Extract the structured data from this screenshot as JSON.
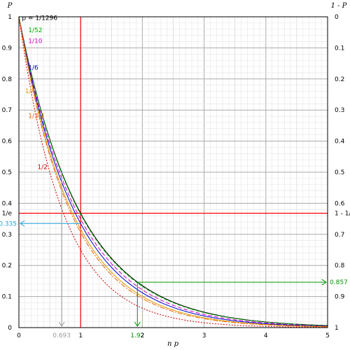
{
  "chart_data": {
    "type": "line",
    "xlabel": "n p",
    "ylabel_left": "P",
    "ylabel_right": "1 - P",
    "xlim": [
      0,
      5
    ],
    "ylim": [
      0,
      1
    ],
    "x_ticks": [
      "0",
      "1",
      "2",
      "3",
      "4",
      "5"
    ],
    "y_ticks_left": [
      "0",
      "0.1",
      "0.2",
      "0.3",
      "0.4",
      "0.5",
      "0.6",
      "0.7",
      "0.8",
      "0.9",
      "1"
    ],
    "y_ticks_right": [
      "1",
      "0.9",
      "0.8",
      "0.7",
      "0.6",
      "0.5",
      "0.4",
      "0.3",
      "0.2",
      "0.1",
      "0"
    ],
    "grid": true,
    "series": [
      {
        "name": "p = 1/1296",
        "p": 0.000772,
        "color": "#000000",
        "dash": "none"
      },
      {
        "name": "1/52",
        "p": 0.01923,
        "color": "#00aa00",
        "dash": "5,2"
      },
      {
        "name": "1/10",
        "p": 0.1,
        "color": "#cc00cc",
        "dash": "6,3"
      },
      {
        "name": "1/6",
        "p": 0.1667,
        "color": "#0000cc",
        "dash": "none"
      },
      {
        "name": "1/4",
        "p": 0.25,
        "color": "#dd9900",
        "dash": "none"
      },
      {
        "name": "1/3.4",
        "p": 0.2941,
        "color": "#ee6600",
        "dash": "7,2,2,2"
      },
      {
        "name": "1/2",
        "p": 0.5,
        "color": "#cc0000",
        "dash": "2,2"
      }
    ],
    "reference_lines": {
      "vertical_x": 1,
      "vertical_color": "#ff0000",
      "horizontal_y": 0.3679,
      "horizontal_color": "#ff0000",
      "left_label": "1/e",
      "right_label": "1 - 1/e"
    },
    "annotations": [
      {
        "label": "0.335",
        "y": 0.335,
        "x_from": 1,
        "color": "#1a9fd9"
      },
      {
        "label": "0.693",
        "x": 0.693,
        "y_from": 0.5,
        "color": "#999999"
      },
      {
        "label": "1.92",
        "x": 1.92,
        "y_from": 0.146,
        "color": "#009900"
      },
      {
        "label": "0.857",
        "y": 0.146,
        "right_value": 0.857,
        "x_from": 1.92,
        "color": "#009900"
      }
    ]
  }
}
